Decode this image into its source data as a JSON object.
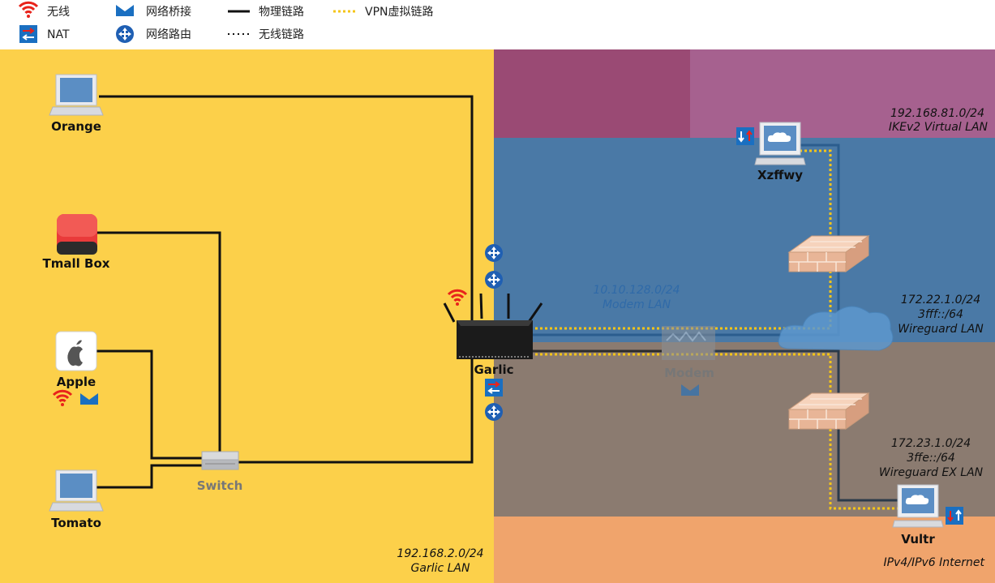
{
  "legend": {
    "wifi": "无线",
    "bridge": "网络桥接",
    "physical": "物理链路",
    "vpn": "VPN虚拟链路",
    "nat": "NAT",
    "routing": "网络路由",
    "wireless_link": "无线链路"
  },
  "nodes": {
    "orange": "Orange",
    "tmall": "Tmall Box",
    "apple": "Apple",
    "tomato": "Tomato",
    "switch": "Switch",
    "garlic": "Garlic",
    "modem": "Modem",
    "xzffwy": "Xzffwy",
    "vultr": "Vultr"
  },
  "networks": {
    "garlic_lan": {
      "cidr": "192.168.2.0/24",
      "name": "Garlic LAN"
    },
    "modem_lan": {
      "cidr": "10.10.128.0/24",
      "name": "Modem LAN"
    },
    "ikev2": {
      "cidr": "192.168.81.0/24",
      "name": "IKEv2 Virtual LAN"
    },
    "wireguard": {
      "cidr": "172.22.1.0/24",
      "cidr6": "3fff::/64",
      "name": "Wireguard LAN"
    },
    "wireguard_ex": {
      "cidr": "172.23.1.0/24",
      "cidr6": "3ffe::/64",
      "name": "Wireguard EX LAN"
    },
    "internet": {
      "name": "IPv4/IPv6 Internet"
    }
  },
  "colors": {
    "garlic_lan": "#fcd04a",
    "ikev2_dark": "#9a4a74",
    "ikev2_light": "#a6618f",
    "wireguard": "#4a79a6",
    "wireguard_ex": "#8b7b70",
    "internet": "#f0a46c",
    "vpn_line": "#f5c518",
    "wifi_icon": "#e8231b",
    "brand_blue": "#1a6fc1"
  }
}
